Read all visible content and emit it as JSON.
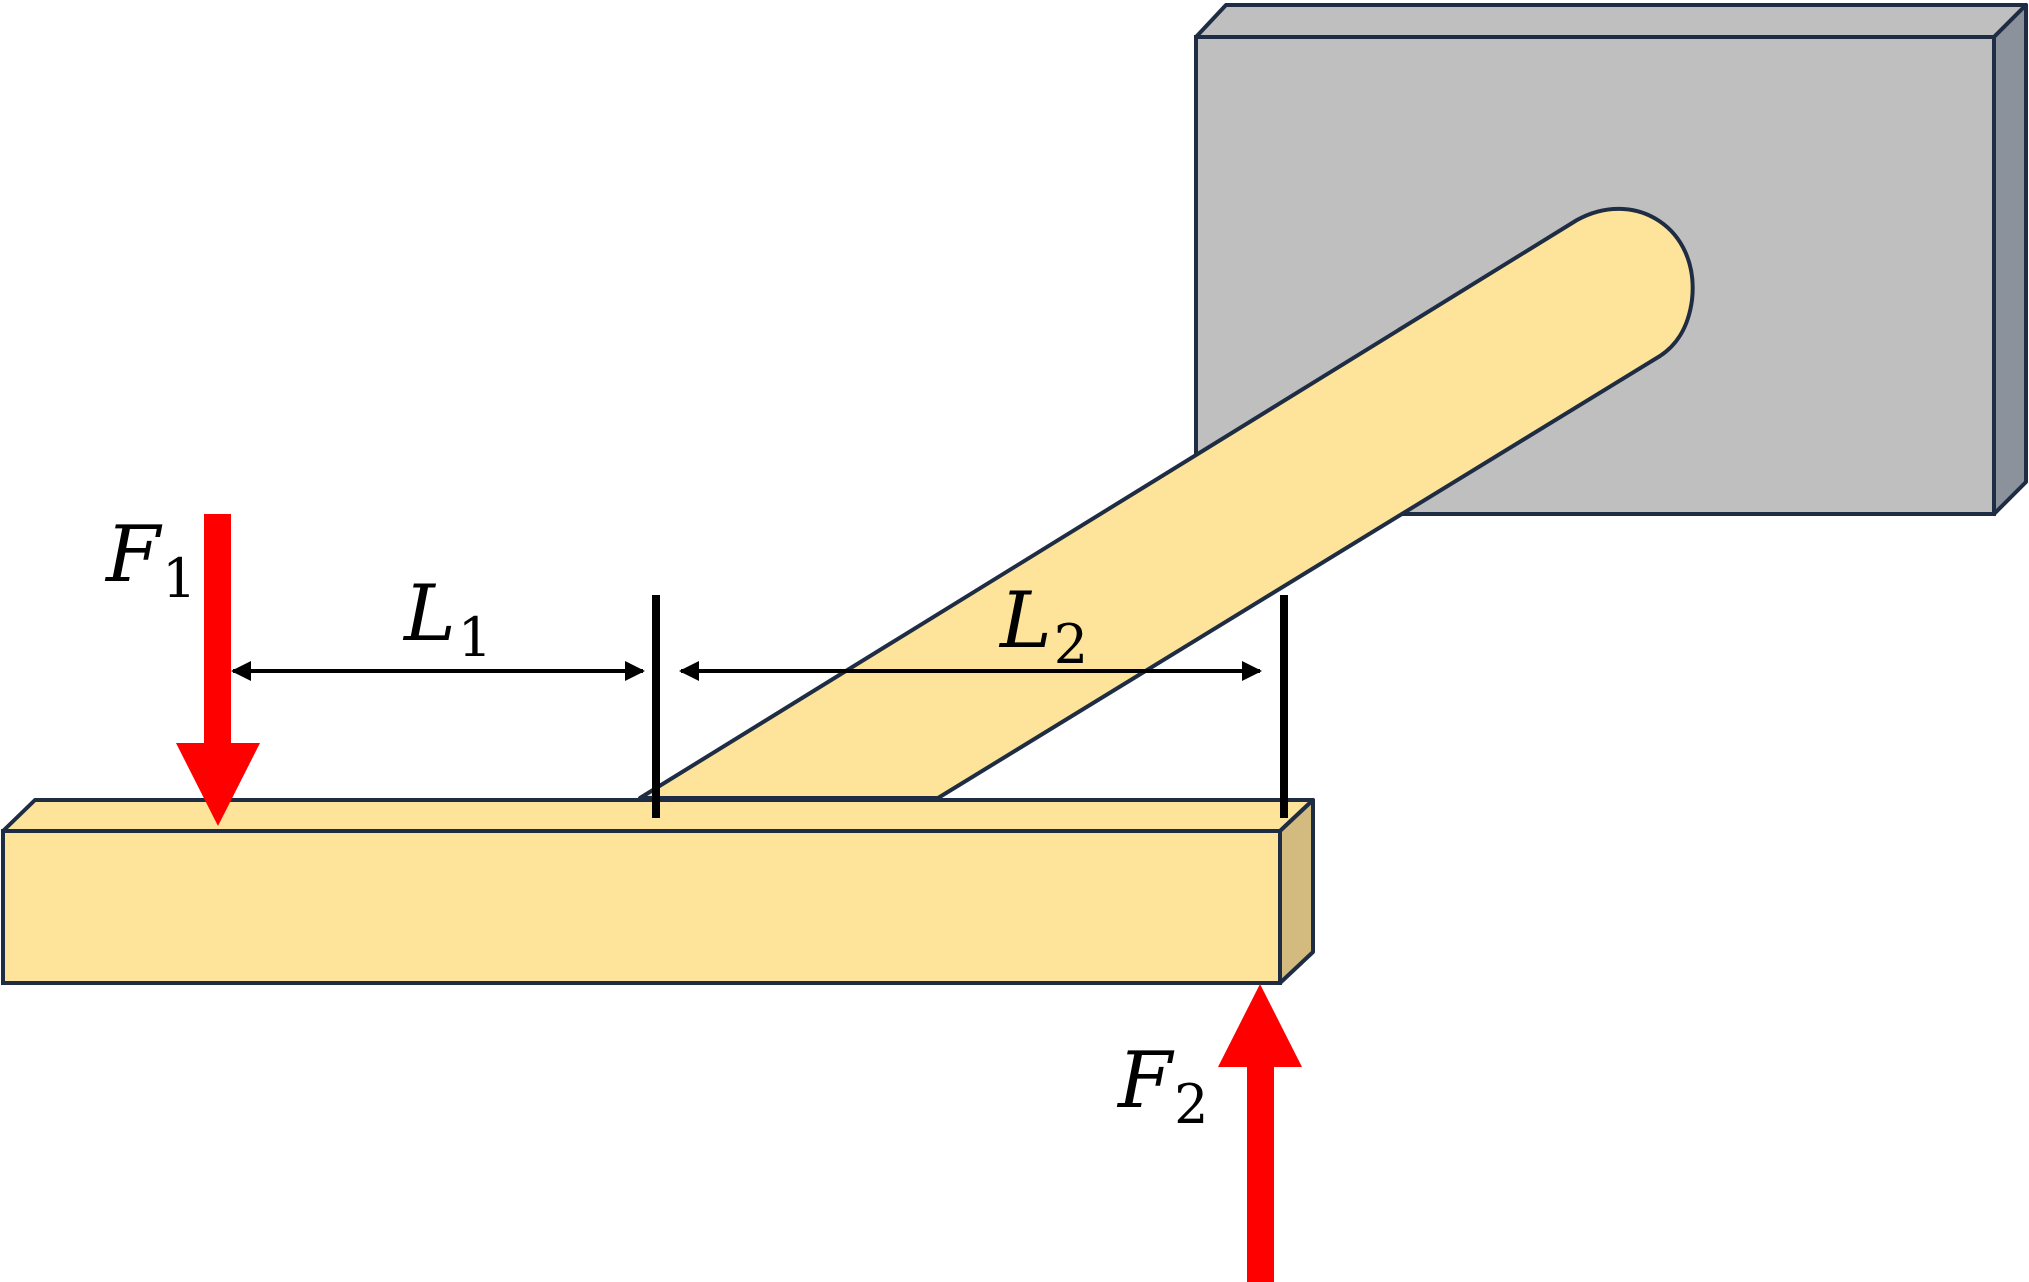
{
  "colors": {
    "wall_front": "#bfbfbf",
    "wall_side": "#8c929c",
    "wood": "#fde49a",
    "wood_side": "#d3bb80",
    "outline": "#1f2d44",
    "force": "#ff0000",
    "dimension": "#000000"
  },
  "labels": {
    "f1_letter": "F",
    "f1_sub": "1",
    "f2_letter": "F",
    "f2_sub": "2",
    "l1_letter": "L",
    "l1_sub": "1",
    "l2_letter": "L",
    "l2_sub": "2"
  }
}
